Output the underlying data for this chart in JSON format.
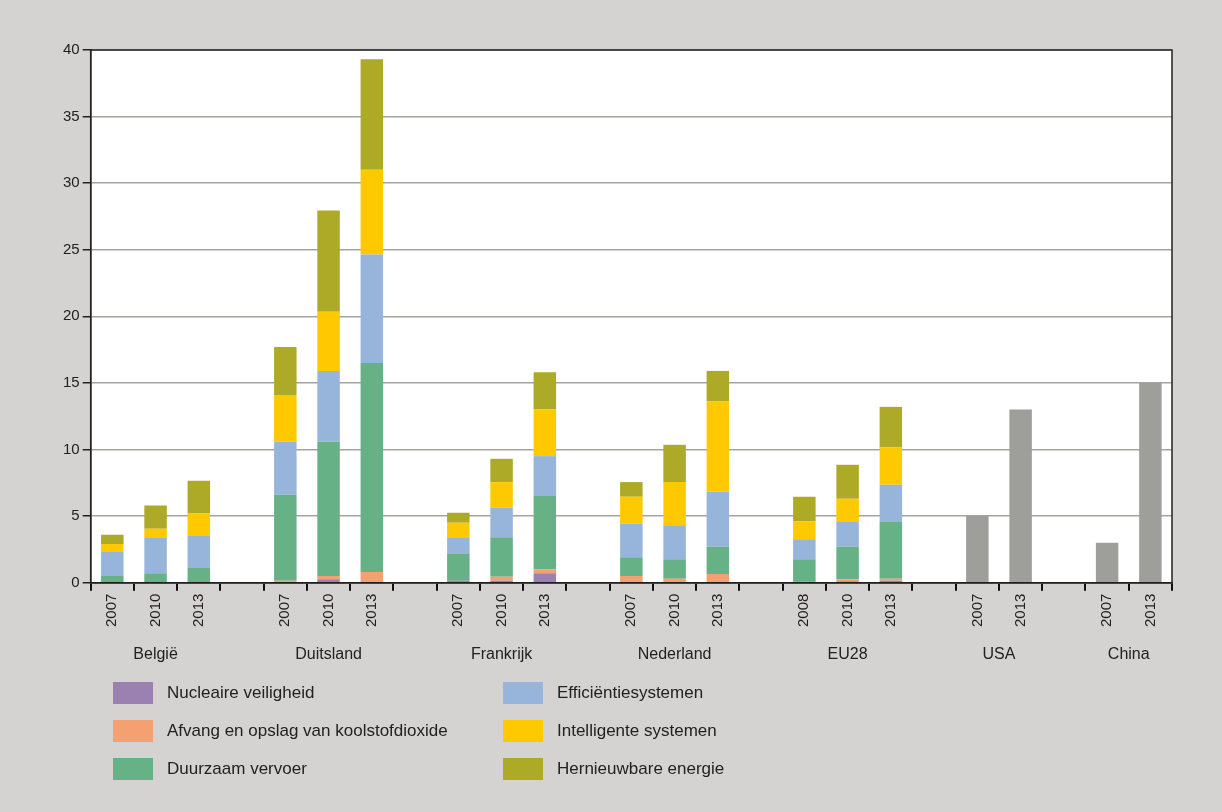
{
  "chart_data": {
    "type": "bar",
    "stacked": true,
    "categories": [
      "2007",
      "2010",
      "2013",
      null,
      "2007",
      "2010",
      "2013",
      null,
      "2007",
      "2010",
      "2013",
      null,
      "2007",
      "2010",
      "2013",
      null,
      "2008",
      "2010",
      "2013",
      null,
      "2007",
      "2013",
      null,
      "2007",
      "2013"
    ],
    "annotations": [
      "België",
      "Duitsland",
      "Frankrijk",
      "Nederland",
      "EU28",
      "USA",
      "China"
    ],
    "series": [
      {
        "name": "Nucleaire veiligheid",
        "color": "#9b80b2",
        "values": [
          null,
          null,
          null,
          null,
          null,
          0.25,
          null,
          null,
          0.15,
          0.15,
          0.7,
          null,
          null,
          null,
          null,
          null,
          0.1,
          0.1,
          0.15,
          null,
          null,
          null,
          null,
          null,
          null
        ]
      },
      {
        "name": "Afvang en opslag van koolstofdioxide",
        "color": "#f4a070",
        "values": [
          null,
          null,
          null,
          null,
          0.15,
          0.25,
          0.8,
          null,
          null,
          0.3,
          0.3,
          null,
          0.5,
          0.3,
          0.65,
          null,
          null,
          0.15,
          0.15,
          null,
          null,
          null,
          null,
          null,
          null
        ]
      },
      {
        "name": "Duurzaam vervoer",
        "color": "#66b185",
        "values": [
          0.5,
          0.7,
          1.1,
          null,
          6.45,
          10.1,
          15.7,
          null,
          2.0,
          2.95,
          5.5,
          null,
          1.4,
          1.45,
          2.05,
          null,
          1.65,
          2.45,
          4.25,
          null,
          null,
          null,
          null,
          null,
          null
        ]
      },
      {
        "name": "Efficiëntiesystemen",
        "color": "#97b5db",
        "values": [
          1.8,
          2.65,
          2.4,
          null,
          4.0,
          5.3,
          8.15,
          null,
          1.25,
          2.25,
          3.0,
          null,
          2.55,
          2.55,
          4.15,
          null,
          1.5,
          1.85,
          2.8,
          null,
          null,
          null,
          null,
          null,
          null
        ]
      },
      {
        "name": "Intelligente systemen",
        "color": "#ffc900",
        "values": [
          0.6,
          0.7,
          1.7,
          null,
          3.5,
          4.45,
          6.35,
          null,
          1.1,
          1.9,
          3.5,
          null,
          2.0,
          3.25,
          6.75,
          null,
          1.35,
          1.75,
          2.8,
          null,
          null,
          null,
          null,
          null,
          null
        ]
      },
      {
        "name": "Hernieuwbare energie",
        "color": "#adaa27",
        "values": [
          0.7,
          1.75,
          2.45,
          null,
          3.6,
          7.6,
          8.3,
          null,
          0.75,
          1.75,
          2.8,
          null,
          1.1,
          2.8,
          2.3,
          null,
          1.85,
          2.55,
          3.05,
          null,
          null,
          null,
          null,
          null,
          null
        ]
      },
      {
        "color": "#9e9e9a",
        "values": [
          null,
          null,
          null,
          null,
          null,
          null,
          null,
          null,
          null,
          null,
          null,
          null,
          null,
          null,
          null,
          null,
          null,
          null,
          null,
          null,
          5,
          13,
          null,
          3,
          15
        ]
      }
    ],
    "ylim": [
      0,
      40
    ],
    "yticks": [
      0,
      5,
      10,
      15,
      20,
      25,
      30,
      35,
      40
    ],
    "grid": "y",
    "legend": "bottom"
  }
}
